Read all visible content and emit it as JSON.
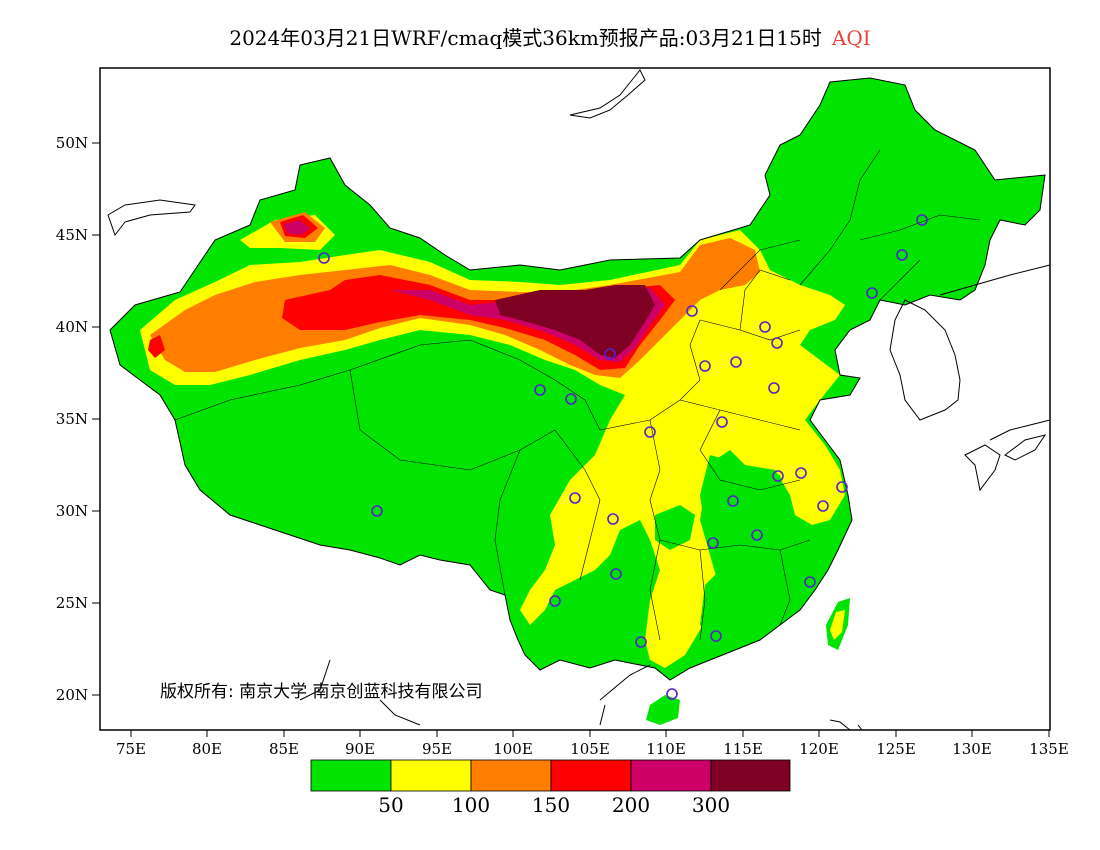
{
  "title": {
    "main": "2024年03月21日WRF/cmaq模式36km预报产品:03月21日15时",
    "variable": "AQI",
    "variable_color": "#e8443a"
  },
  "axes": {
    "lat_ticks": [
      "50N",
      "45N",
      "40N",
      "35N",
      "30N",
      "25N",
      "20N"
    ],
    "lon_ticks": [
      "75E",
      "80E",
      "85E",
      "90E",
      "95E",
      "100E",
      "105E",
      "110E",
      "115E",
      "120E",
      "125E",
      "130E",
      "135E"
    ]
  },
  "legend": {
    "colors": [
      "#00e400",
      "#ffff00",
      "#ff7e00",
      "#ff0000",
      "#cc0066",
      "#7e0023"
    ],
    "labels": [
      "50",
      "100",
      "150",
      "200",
      "300"
    ]
  },
  "copyright": "版权所有: 南京大学 南京创蓝科技有限公司",
  "map": {
    "land_fill": "#ffffff",
    "water_fill": "#ffffff",
    "marker_color": "#5522cc"
  }
}
